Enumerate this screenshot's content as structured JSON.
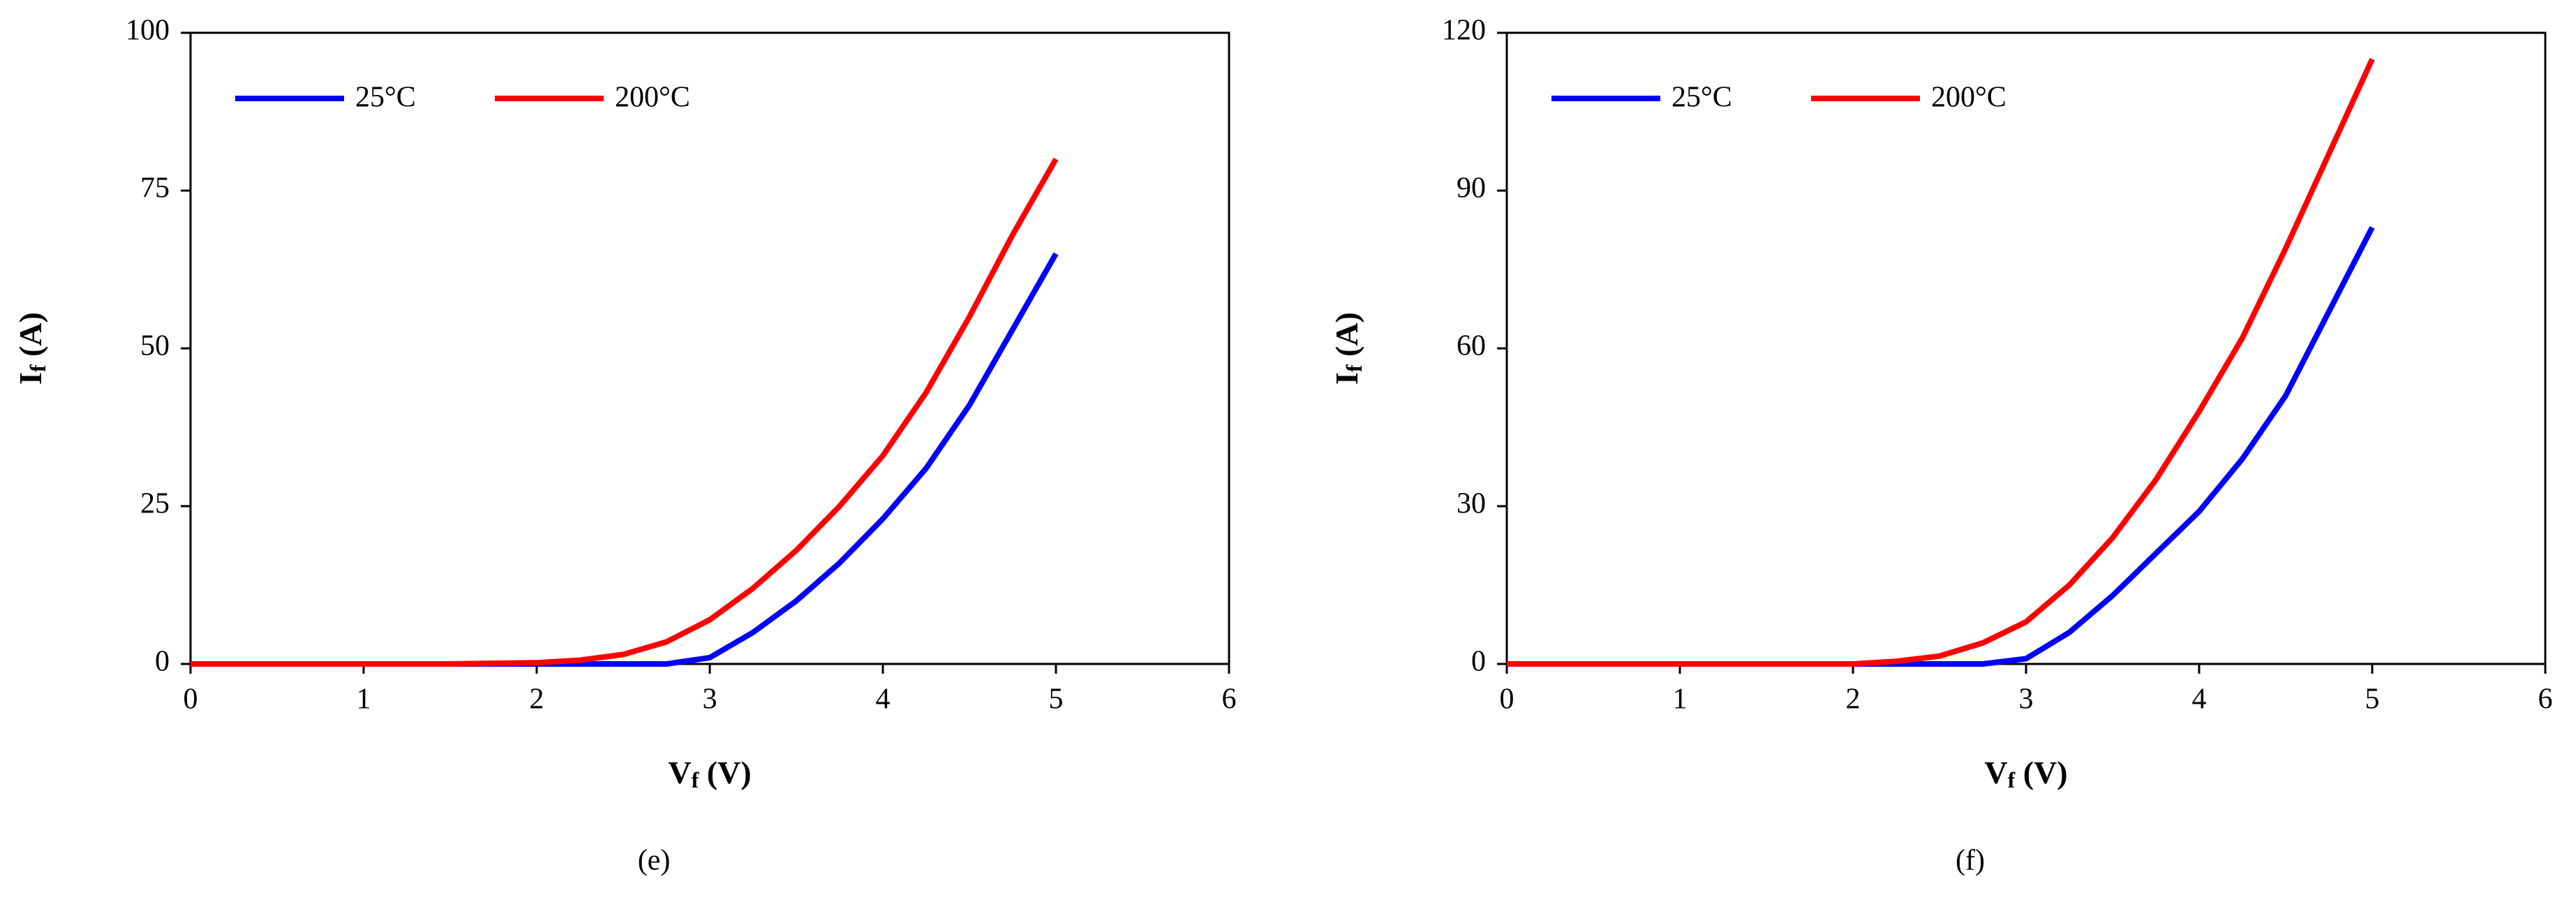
{
  "chart_data": [
    {
      "type": "line",
      "label": "(e)",
      "xlabel": [
        "V",
        "f",
        " (V)"
      ],
      "ylabel": [
        "I",
        "f",
        " (A)"
      ],
      "x": [
        0,
        0.5,
        1,
        1.5,
        2,
        2.25,
        2.5,
        2.75,
        3,
        3.25,
        3.5,
        3.75,
        4,
        4.25,
        4.5,
        4.75,
        5
      ],
      "series": [
        {
          "name": "25°C",
          "color": "#0000ff",
          "values": [
            0,
            0,
            0,
            0,
            0,
            0,
            0,
            0,
            1,
            5,
            10,
            16,
            23,
            31,
            41,
            53,
            65
          ]
        },
        {
          "name": "200°C",
          "color": "#ff0000",
          "values": [
            0,
            0,
            0,
            0,
            0.2,
            0.6,
            1.5,
            3.5,
            7,
            12,
            18,
            25,
            33,
            43,
            55,
            68,
            80
          ]
        }
      ],
      "xlim": [
        0,
        6
      ],
      "xticks": [
        0,
        1,
        2,
        3,
        4,
        5,
        6
      ],
      "ylim": [
        0,
        100
      ],
      "yticks": [
        0,
        25,
        50,
        75,
        100
      ],
      "legend": "upper left"
    },
    {
      "type": "line",
      "label": "(f)",
      "xlabel": [
        "V",
        "f",
        " (V)"
      ],
      "ylabel": [
        "I",
        "f",
        " (A)"
      ],
      "x": [
        0,
        0.5,
        1,
        1.5,
        2,
        2.25,
        2.5,
        2.75,
        3,
        3.25,
        3.5,
        3.75,
        4,
        4.25,
        4.5,
        4.75,
        5
      ],
      "series": [
        {
          "name": "25°C",
          "color": "#0000ff",
          "values": [
            0,
            0,
            0,
            0,
            0,
            0,
            0,
            0,
            1,
            6,
            13,
            21,
            29,
            39,
            51,
            67,
            83
          ]
        },
        {
          "name": "200°C",
          "color": "#ff0000",
          "values": [
            0,
            0,
            0,
            0,
            0,
            0.5,
            1.5,
            4,
            8,
            15,
            24,
            35,
            48,
            62,
            79,
            97,
            115
          ]
        }
      ],
      "xlim": [
        0,
        6
      ],
      "xticks": [
        0,
        1,
        2,
        3,
        4,
        5,
        6
      ],
      "ylim": [
        0,
        120
      ],
      "yticks": [
        0,
        30,
        60,
        90,
        120
      ],
      "legend": "upper left"
    }
  ]
}
